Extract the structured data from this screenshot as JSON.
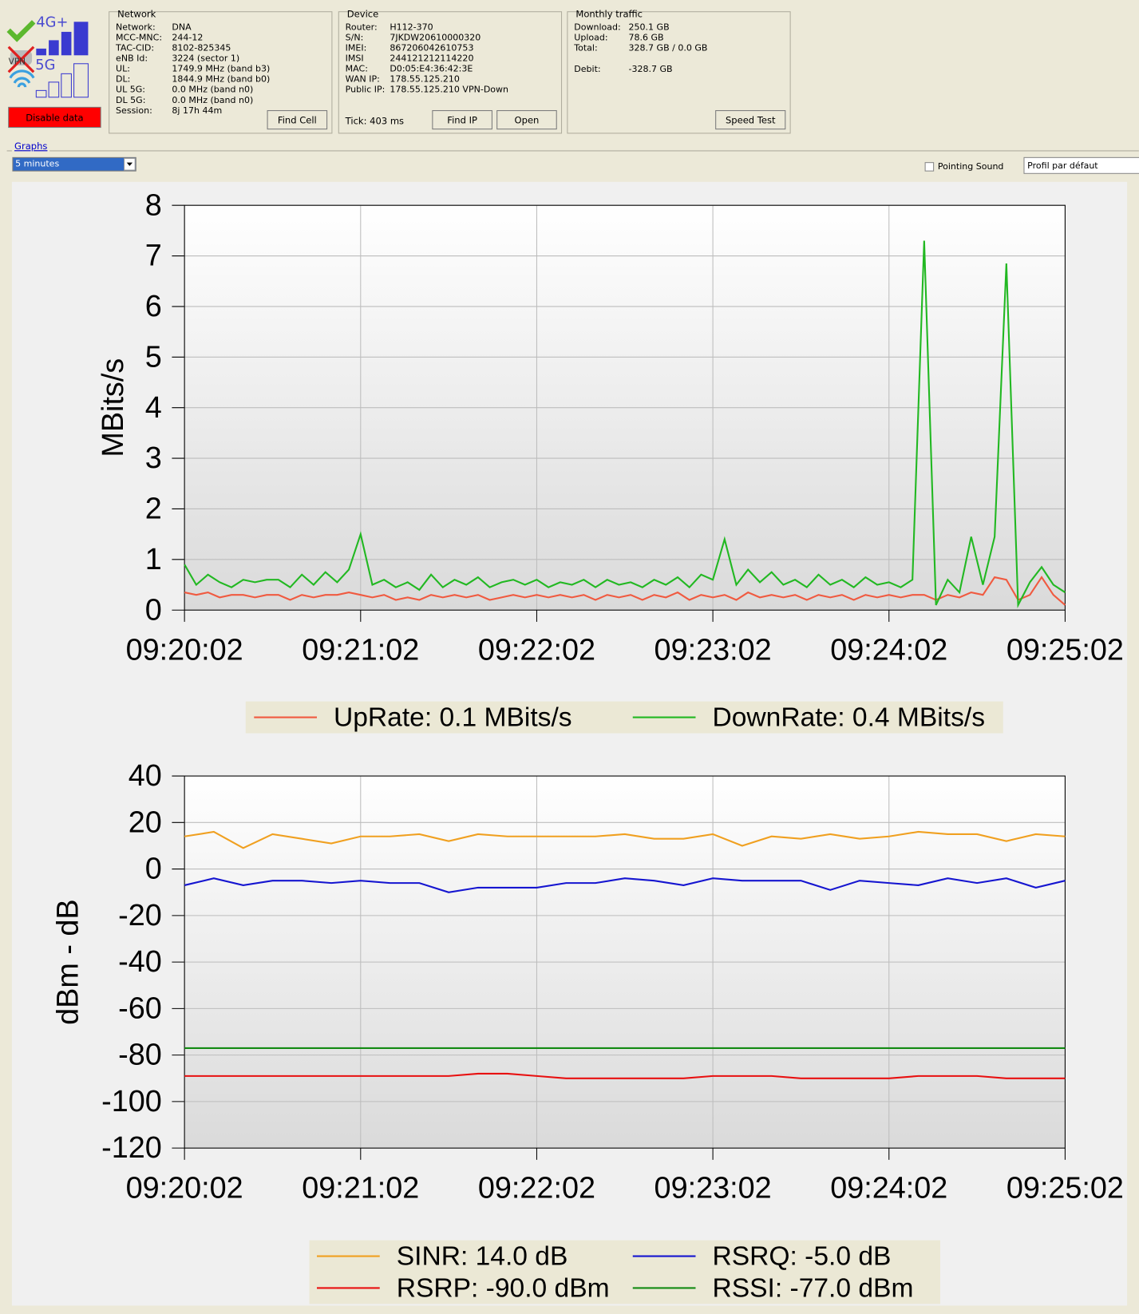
{
  "icons": {
    "lte": "4G+",
    "nr": "5G",
    "vpn": "VPN"
  },
  "disable_button": "Disable data",
  "network": {
    "title": "Network",
    "rows": [
      [
        "Network:",
        "DNA"
      ],
      [
        "MCC-MNC:",
        "244-12"
      ],
      [
        "TAC-CID:",
        "8102-825345"
      ],
      [
        "eNB Id:",
        "3224 (sector 1)"
      ],
      [
        "UL:",
        "1749.9 MHz (band b3)"
      ],
      [
        "DL:",
        "1844.9 MHz (band b0)"
      ],
      [
        "UL 5G:",
        "0.0 MHz (band n0)"
      ],
      [
        "DL 5G:",
        "0.0 MHz (band n0)"
      ],
      [
        "Session:",
        "8j 17h 44m"
      ]
    ],
    "button": "Find Cell"
  },
  "device": {
    "title": "Device",
    "rows": [
      [
        "Router:",
        "H112-370"
      ],
      [
        "S/N:",
        "7JKDW20610000320"
      ],
      [
        "IMEI:",
        "867206042610753"
      ],
      [
        "IMSI",
        "244121212114220"
      ],
      [
        "MAC:",
        "D0:05:E4:36:42:3E"
      ],
      [
        "WAN IP:",
        "178.55.125.210"
      ],
      [
        "Public IP:",
        "178.55.125.210 VPN-Down"
      ]
    ],
    "tick": "Tick: 403 ms",
    "buttons": [
      "Find IP",
      "Open"
    ]
  },
  "traffic": {
    "title": "Monthly traffic",
    "rows": [
      [
        "Download:",
        "250.1 GB"
      ],
      [
        "Upload:",
        "78.6 GB"
      ],
      [
        "Total:",
        "328.7 GB / 0.0 GB"
      ]
    ],
    "debit": [
      "Debit:",
      "-328.7 GB"
    ],
    "button": "Speed Test"
  },
  "graphs": {
    "title": "Graphs",
    "period": "5 minutes",
    "pointing_sound": "Pointing Sound",
    "profile": "Profil par défaut"
  },
  "chart_data": [
    {
      "type": "line",
      "y_label": "MBits/s",
      "grid": true,
      "x": [
        "09:20:02",
        "09:20:06",
        "09:20:10",
        "09:20:14",
        "09:20:18",
        "09:20:22",
        "09:20:26",
        "09:20:30",
        "09:20:34",
        "09:20:38",
        "09:20:42",
        "09:20:46",
        "09:20:50",
        "09:20:54",
        "09:20:58",
        "09:21:02",
        "09:21:06",
        "09:21:10",
        "09:21:14",
        "09:21:18",
        "09:21:22",
        "09:21:26",
        "09:21:30",
        "09:21:34",
        "09:21:38",
        "09:21:42",
        "09:21:46",
        "09:21:50",
        "09:21:54",
        "09:21:58",
        "09:22:02",
        "09:22:06",
        "09:22:10",
        "09:22:14",
        "09:22:18",
        "09:22:22",
        "09:22:26",
        "09:22:30",
        "09:22:34",
        "09:22:38",
        "09:22:42",
        "09:22:46",
        "09:22:50",
        "09:22:54",
        "09:22:58",
        "09:23:02",
        "09:23:06",
        "09:23:10",
        "09:23:14",
        "09:23:18",
        "09:23:22",
        "09:23:26",
        "09:23:30",
        "09:23:34",
        "09:23:38",
        "09:23:42",
        "09:23:46",
        "09:23:50",
        "09:23:54",
        "09:23:58",
        "09:24:02",
        "09:24:06",
        "09:24:10",
        "09:24:14",
        "09:24:18",
        "09:24:22",
        "09:24:26",
        "09:24:30",
        "09:24:34",
        "09:24:38",
        "09:24:42",
        "09:24:46",
        "09:24:50",
        "09:24:54",
        "09:24:58",
        "09:25:02"
      ],
      "xlim": [
        "09:20:02",
        "09:25:02"
      ],
      "xticks": [
        "09:20:02",
        "09:21:02",
        "09:22:02",
        "09:23:02",
        "09:24:02",
        "09:25:02"
      ],
      "ylim": [
        0,
        8
      ],
      "yticks": [
        0,
        1,
        2,
        3,
        4,
        5,
        6,
        7,
        8
      ],
      "series": [
        {
          "name": "UpRate: 0.1 MBits/s",
          "color": "#f05a40",
          "values": [
            0.35,
            0.3,
            0.35,
            0.25,
            0.3,
            0.3,
            0.25,
            0.3,
            0.3,
            0.2,
            0.3,
            0.25,
            0.3,
            0.3,
            0.35,
            0.3,
            0.25,
            0.3,
            0.2,
            0.25,
            0.2,
            0.3,
            0.25,
            0.3,
            0.25,
            0.3,
            0.2,
            0.25,
            0.3,
            0.25,
            0.3,
            0.25,
            0.3,
            0.25,
            0.3,
            0.2,
            0.3,
            0.25,
            0.3,
            0.2,
            0.3,
            0.25,
            0.35,
            0.2,
            0.3,
            0.25,
            0.3,
            0.2,
            0.35,
            0.25,
            0.3,
            0.25,
            0.3,
            0.2,
            0.3,
            0.25,
            0.3,
            0.2,
            0.3,
            0.25,
            0.3,
            0.25,
            0.3,
            0.3,
            0.2,
            0.3,
            0.25,
            0.35,
            0.3,
            0.65,
            0.6,
            0.2,
            0.3,
            0.65,
            0.3,
            0.1
          ]
        },
        {
          "name": "DownRate: 0.4 MBits/s",
          "color": "#22b822",
          "values": [
            0.9,
            0.5,
            0.7,
            0.55,
            0.45,
            0.6,
            0.55,
            0.6,
            0.6,
            0.45,
            0.7,
            0.5,
            0.75,
            0.55,
            0.8,
            1.5,
            0.5,
            0.6,
            0.45,
            0.55,
            0.4,
            0.7,
            0.45,
            0.6,
            0.5,
            0.65,
            0.45,
            0.55,
            0.6,
            0.5,
            0.6,
            0.45,
            0.55,
            0.5,
            0.6,
            0.45,
            0.6,
            0.5,
            0.55,
            0.45,
            0.6,
            0.5,
            0.65,
            0.45,
            0.7,
            0.6,
            1.4,
            0.5,
            0.8,
            0.55,
            0.75,
            0.5,
            0.6,
            0.45,
            0.7,
            0.5,
            0.6,
            0.45,
            0.65,
            0.5,
            0.55,
            0.45,
            0.6,
            7.3,
            0.1,
            0.6,
            0.35,
            1.45,
            0.5,
            1.45,
            6.85,
            0.1,
            0.55,
            0.85,
            0.5,
            0.35
          ]
        }
      ]
    },
    {
      "type": "line",
      "y_label": "dBm - dB",
      "grid": true,
      "x": [
        "09:20:02",
        "09:20:12",
        "09:20:22",
        "09:20:32",
        "09:20:42",
        "09:20:52",
        "09:21:02",
        "09:21:12",
        "09:21:22",
        "09:21:32",
        "09:21:42",
        "09:21:52",
        "09:22:02",
        "09:22:12",
        "09:22:22",
        "09:22:32",
        "09:22:42",
        "09:22:52",
        "09:23:02",
        "09:23:12",
        "09:23:22",
        "09:23:32",
        "09:23:42",
        "09:23:52",
        "09:24:02",
        "09:24:12",
        "09:24:22",
        "09:24:32",
        "09:24:42",
        "09:24:52",
        "09:25:02"
      ],
      "xlim": [
        "09:20:02",
        "09:25:02"
      ],
      "xticks": [
        "09:20:02",
        "09:21:02",
        "09:22:02",
        "09:23:02",
        "09:24:02",
        "09:25:02"
      ],
      "ylim": [
        -120,
        40
      ],
      "yticks": [
        -120,
        -100,
        -80,
        -60,
        -40,
        -20,
        0,
        20,
        40
      ],
      "series": [
        {
          "name": "SINR: 14.0 dB",
          "color": "#f0a020",
          "values": [
            14,
            16,
            9,
            15,
            13,
            11,
            14,
            14,
            15,
            12,
            15,
            14,
            14,
            14,
            14,
            15,
            13,
            13,
            15,
            10,
            14,
            13,
            15,
            13,
            14,
            16,
            15,
            15,
            12,
            15,
            14
          ]
        },
        {
          "name": "RSRQ: -5.0 dB",
          "color": "#1515d0",
          "values": [
            -7,
            -4,
            -7,
            -5,
            -5,
            -6,
            -5,
            -6,
            -6,
            -10,
            -8,
            -8,
            -8,
            -6,
            -6,
            -4,
            -5,
            -7,
            -4,
            -5,
            -5,
            -5,
            -9,
            -5,
            -6,
            -7,
            -4,
            -6,
            -4,
            -8,
            -5
          ]
        },
        {
          "name": "RSRP: -90.0 dBm",
          "color": "#e81010",
          "values": [
            -89,
            -89,
            -89,
            -89,
            -89,
            -89,
            -89,
            -89,
            -89,
            -89,
            -88,
            -88,
            -89,
            -90,
            -90,
            -90,
            -90,
            -90,
            -89,
            -89,
            -89,
            -90,
            -90,
            -90,
            -90,
            -89,
            -89,
            -89,
            -90,
            -90,
            -90
          ]
        },
        {
          "name": "RSSI: -77.0 dBm",
          "color": "#138a13",
          "values": [
            -77,
            -77,
            -77,
            -77,
            -77,
            -77,
            -77,
            -77,
            -77,
            -77,
            -77,
            -77,
            -77,
            -77,
            -77,
            -77,
            -77,
            -77,
            -77,
            -77,
            -77,
            -77,
            -77,
            -77,
            -77,
            -77,
            -77,
            -77,
            -77,
            -77,
            -77
          ]
        }
      ]
    }
  ]
}
